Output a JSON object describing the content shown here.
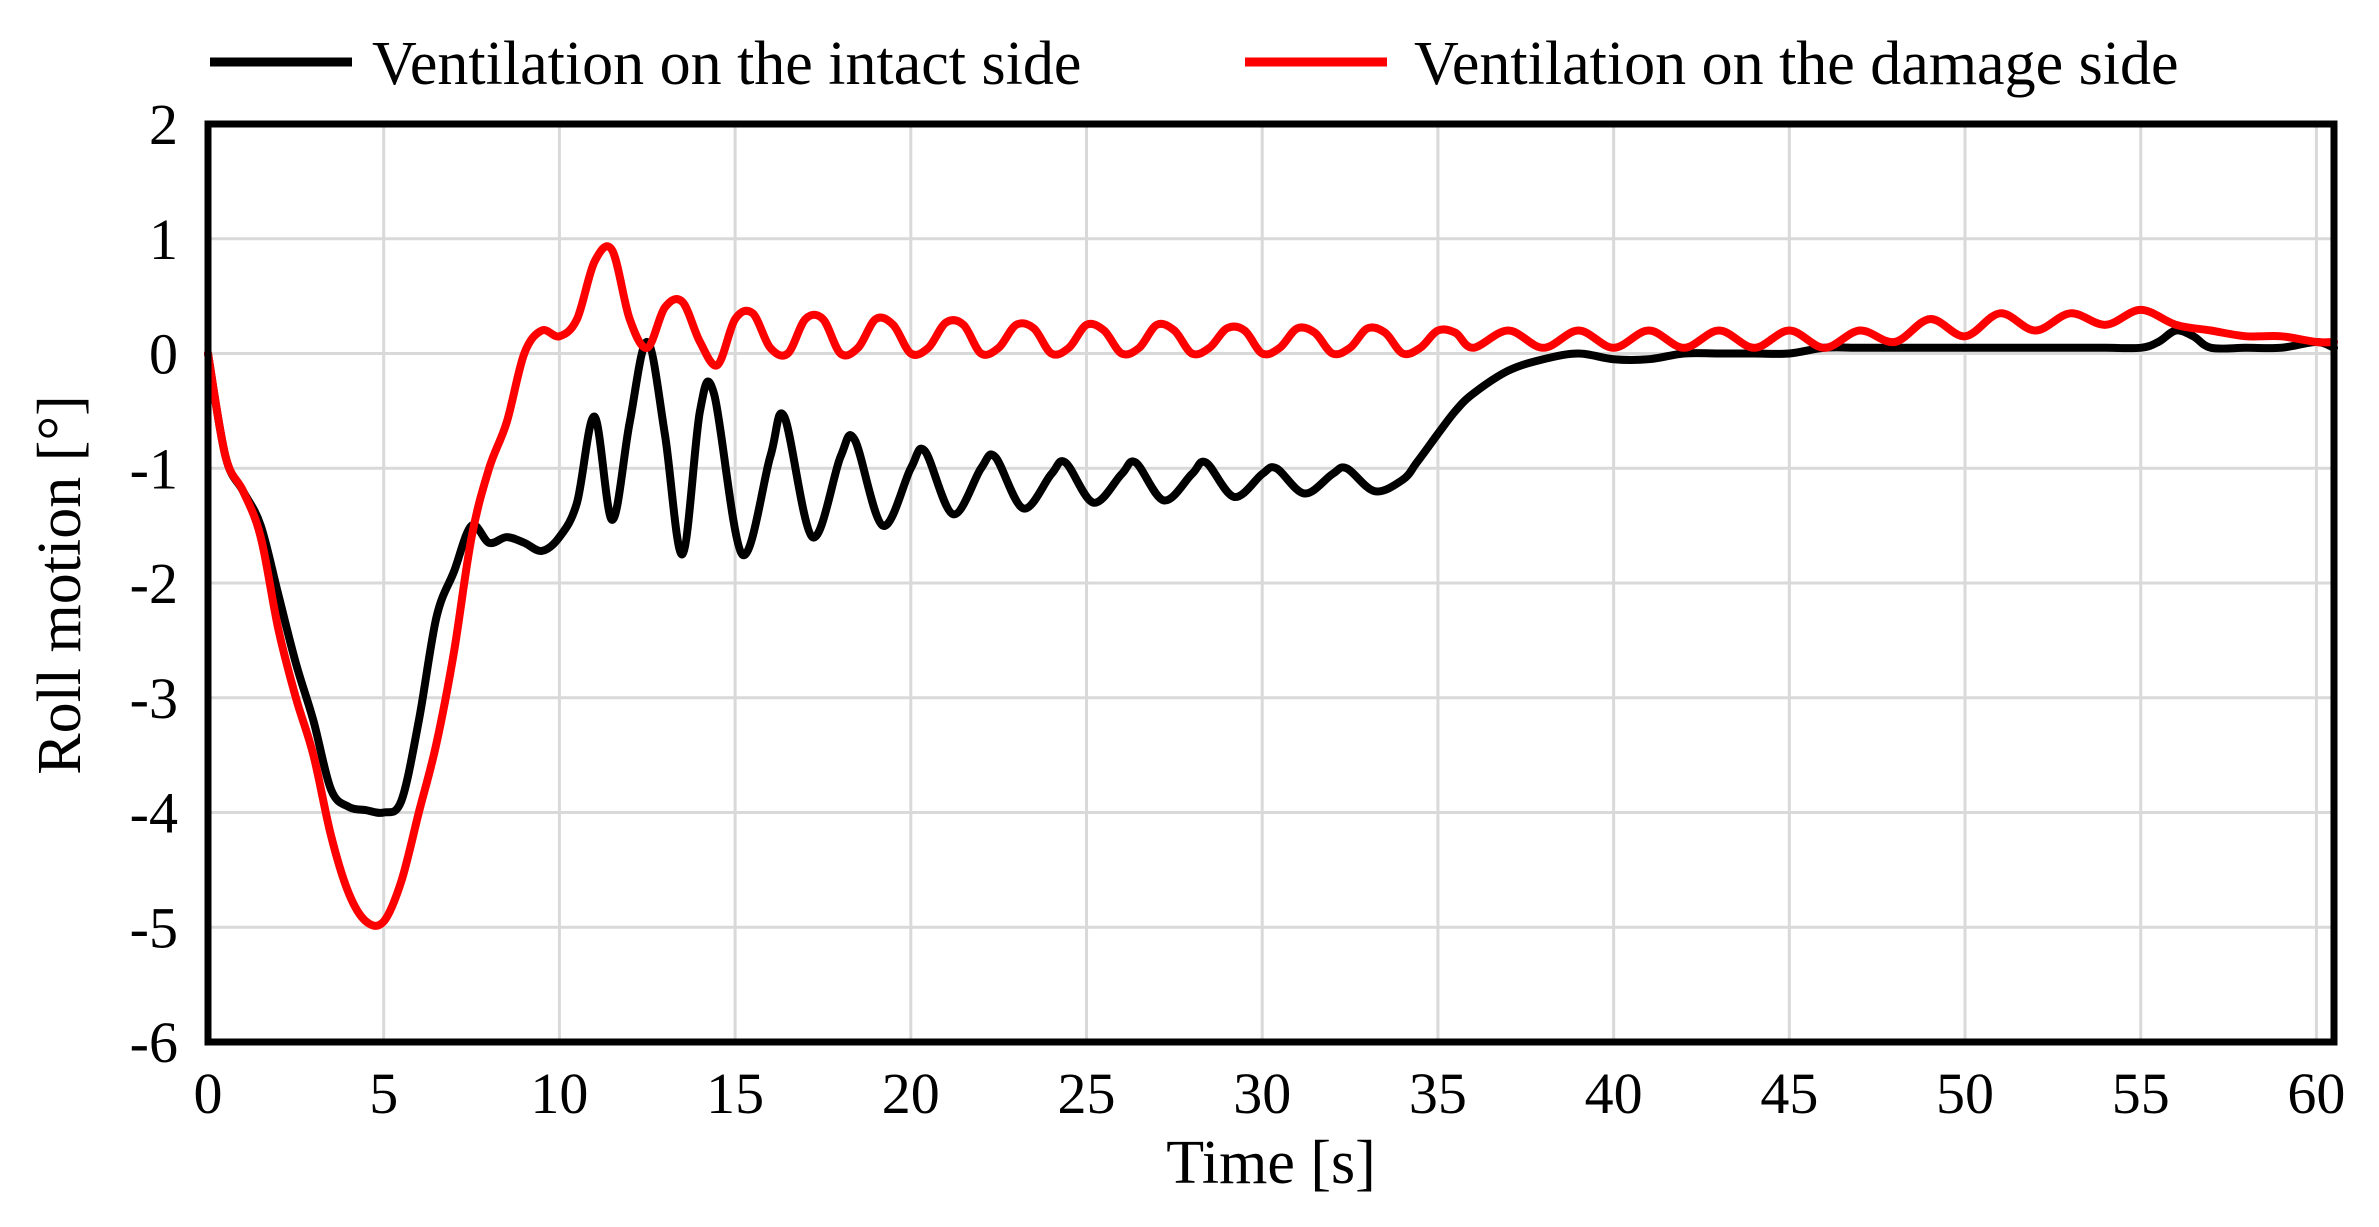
{
  "chart_data": {
    "type": "line",
    "title": "",
    "xlabel": "Time [s]",
    "ylabel": "Roll motion [°]",
    "xlim": [
      0,
      60.5
    ],
    "ylim": [
      -6,
      2
    ],
    "grid": true,
    "legend_position": "top",
    "xticks": [
      0,
      5,
      10,
      15,
      20,
      25,
      30,
      35,
      40,
      45,
      50,
      55,
      60
    ],
    "yticks": [
      2,
      1,
      0,
      -1,
      -2,
      -3,
      -4,
      -5,
      -6
    ],
    "series": [
      {
        "name": "Ventilation on the intact side",
        "color": "#000000",
        "x": [
          0,
          0.5,
          1,
          1.5,
          2,
          2.5,
          3,
          3.5,
          4,
          4.5,
          5,
          5.5,
          6,
          6.5,
          7,
          7.5,
          8,
          8.5,
          9,
          9.5,
          10,
          10.5,
          11,
          11.5,
          12,
          12.5,
          13,
          13.5,
          14,
          14.4,
          15.2,
          16,
          16.4,
          17.2,
          18,
          18.4,
          19.2,
          20,
          20.4,
          21.2,
          22,
          22.4,
          23.2,
          24,
          24.4,
          25.2,
          26,
          26.4,
          27.2,
          28,
          28.4,
          29.2,
          30,
          30.4,
          31.2,
          32,
          32.4,
          33.2,
          34,
          34.4,
          35,
          35.5,
          36,
          37,
          38,
          39,
          40,
          41,
          42,
          43,
          44,
          45,
          46,
          47,
          48,
          49,
          50,
          51,
          52,
          53,
          54,
          55,
          55.5,
          56,
          56.5,
          57,
          58,
          59,
          60,
          60.5
        ],
        "y": [
          0,
          -0.9,
          -1.2,
          -1.5,
          -2.1,
          -2.7,
          -3.2,
          -3.8,
          -3.95,
          -3.98,
          -4.0,
          -3.9,
          -3.2,
          -2.3,
          -1.9,
          -1.5,
          -1.65,
          -1.6,
          -1.65,
          -1.72,
          -1.6,
          -1.3,
          -0.55,
          -1.45,
          -0.6,
          0.1,
          -0.7,
          -1.75,
          -0.5,
          -0.35,
          -1.75,
          -0.9,
          -0.55,
          -1.6,
          -0.9,
          -0.75,
          -1.5,
          -1.0,
          -0.85,
          -1.4,
          -1.0,
          -0.9,
          -1.35,
          -1.05,
          -0.95,
          -1.3,
          -1.05,
          -0.95,
          -1.28,
          -1.05,
          -0.95,
          -1.25,
          -1.05,
          -1.0,
          -1.22,
          -1.05,
          -1.0,
          -1.2,
          -1.1,
          -0.95,
          -0.7,
          -0.5,
          -0.35,
          -0.15,
          -0.05,
          0.0,
          -0.05,
          -0.05,
          0.0,
          0.0,
          0.0,
          0.0,
          0.05,
          0.05,
          0.05,
          0.05,
          0.05,
          0.05,
          0.05,
          0.05,
          0.05,
          0.05,
          0.1,
          0.2,
          0.15,
          0.05,
          0.05,
          0.05,
          0.1,
          0.05
        ]
      },
      {
        "name": "Ventilation on the damage side",
        "color": "#ff0000",
        "x": [
          0,
          0.5,
          1,
          1.5,
          2,
          2.5,
          3,
          3.5,
          4,
          4.5,
          5,
          5.5,
          6,
          6.5,
          7,
          7.5,
          8,
          8.5,
          9,
          9.5,
          10,
          10.5,
          11,
          11.5,
          12,
          12.5,
          13,
          13.5,
          14,
          14.5,
          15,
          15.5,
          16,
          16.5,
          17,
          17.5,
          18,
          18.5,
          19,
          19.5,
          20,
          20.5,
          21,
          21.5,
          22,
          22.5,
          23,
          23.5,
          24,
          24.5,
          25,
          25.5,
          26,
          26.5,
          27,
          27.5,
          28,
          28.5,
          29,
          29.5,
          30,
          30.5,
          31,
          31.5,
          32,
          32.5,
          33,
          33.5,
          34,
          34.5,
          35,
          35.5,
          36,
          37,
          38,
          39,
          40,
          41,
          42,
          43,
          44,
          45,
          46,
          47,
          48,
          49,
          50,
          51,
          52,
          53,
          54,
          55,
          56,
          57,
          58,
          59,
          60,
          60.5
        ],
        "y": [
          0,
          -0.9,
          -1.2,
          -1.6,
          -2.4,
          -3.0,
          -3.5,
          -4.2,
          -4.7,
          -4.95,
          -4.95,
          -4.6,
          -4.0,
          -3.4,
          -2.6,
          -1.6,
          -1.0,
          -0.6,
          0.0,
          0.2,
          0.15,
          0.3,
          0.8,
          0.9,
          0.3,
          0.05,
          0.4,
          0.45,
          0.1,
          -0.1,
          0.3,
          0.35,
          0.05,
          0.0,
          0.3,
          0.3,
          0.0,
          0.05,
          0.3,
          0.25,
          0.0,
          0.05,
          0.27,
          0.25,
          0.0,
          0.05,
          0.25,
          0.22,
          0.0,
          0.05,
          0.25,
          0.2,
          0.0,
          0.05,
          0.25,
          0.2,
          0.0,
          0.05,
          0.22,
          0.2,
          0.0,
          0.05,
          0.22,
          0.18,
          0.0,
          0.05,
          0.22,
          0.18,
          0.0,
          0.05,
          0.2,
          0.18,
          0.05,
          0.2,
          0.05,
          0.2,
          0.05,
          0.2,
          0.05,
          0.2,
          0.05,
          0.2,
          0.05,
          0.2,
          0.1,
          0.3,
          0.15,
          0.35,
          0.2,
          0.35,
          0.25,
          0.38,
          0.25,
          0.2,
          0.15,
          0.15,
          0.1,
          0.1
        ]
      }
    ]
  }
}
